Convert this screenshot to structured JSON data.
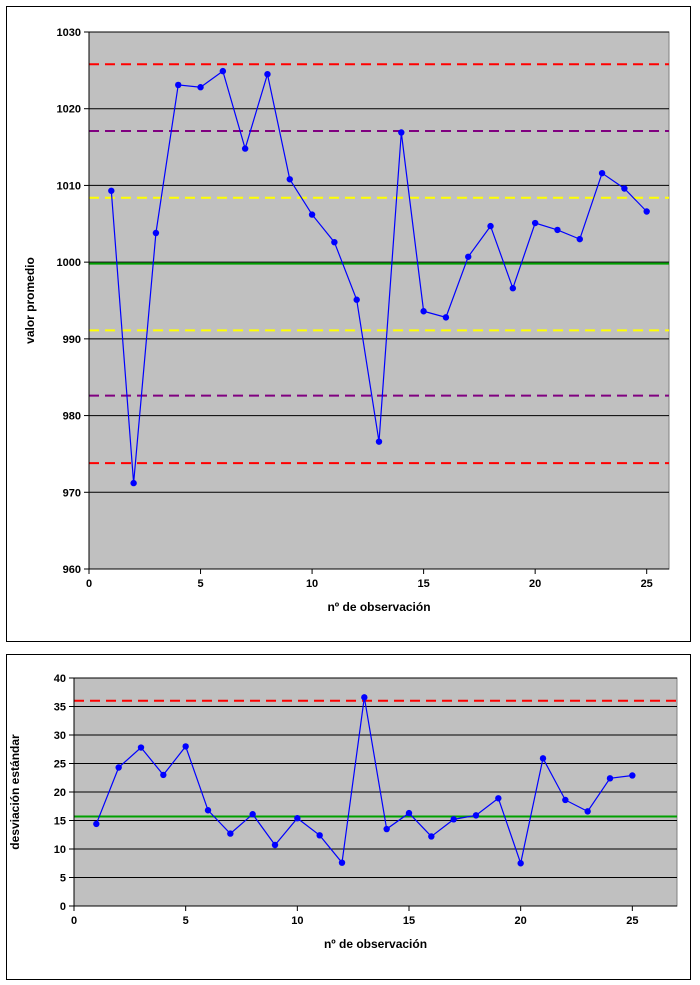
{
  "chart_data": [
    {
      "type": "line",
      "xlabel": "nº de observación",
      "ylabel": "valor promedio",
      "xlim": [
        0,
        26
      ],
      "ylim": [
        960,
        1030
      ],
      "xticks": [
        0,
        5,
        10,
        15,
        20,
        25
      ],
      "yticks": [
        960,
        970,
        980,
        990,
        1000,
        1010,
        1020,
        1030
      ],
      "grid": "horizontal",
      "plot_background": "#c0c0c0",
      "series": [
        {
          "color": "#0000ff",
          "x": [
            1,
            2,
            3,
            4,
            5,
            6,
            7,
            8,
            9,
            10,
            11,
            12,
            13,
            14,
            15,
            16,
            17,
            18,
            19,
            20,
            21,
            22,
            23,
            24,
            25
          ],
          "values": [
            1009.3,
            971.2,
            1003.8,
            1023.1,
            1022.8,
            1024.9,
            1014.8,
            1024.5,
            1010.8,
            1006.2,
            1002.6,
            995.1,
            976.6,
            1016.9,
            993.6,
            992.8,
            1000.7,
            1004.7,
            996.6,
            1005.1,
            1004.2,
            1003.0,
            1011.6,
            1009.6,
            1006.6
          ]
        }
      ],
      "reference_lines": [
        {
          "value": 1025.8,
          "color": "#ff0000",
          "style": "dashed"
        },
        {
          "value": 1017.1,
          "color": "#800080",
          "style": "dashed"
        },
        {
          "value": 1008.4,
          "color": "#ffff00",
          "style": "dashed"
        },
        {
          "value": 999.8,
          "color": "#00a000",
          "style": "solid"
        },
        {
          "value": 991.1,
          "color": "#ffff00",
          "style": "dashed"
        },
        {
          "value": 982.6,
          "color": "#800080",
          "style": "dashed"
        },
        {
          "value": 973.8,
          "color": "#ff0000",
          "style": "dashed"
        }
      ]
    },
    {
      "type": "line",
      "xlabel": "nº de observación",
      "ylabel": "desviación estándar",
      "xlim": [
        0,
        27
      ],
      "ylim": [
        0,
        40
      ],
      "xticks": [
        0,
        5,
        10,
        15,
        20,
        25
      ],
      "yticks": [
        0,
        5,
        10,
        15,
        20,
        25,
        30,
        35,
        40
      ],
      "grid": "horizontal",
      "plot_background": "#c0c0c0",
      "series": [
        {
          "color": "#0000ff",
          "x": [
            1,
            2,
            3,
            4,
            5,
            6,
            7,
            8,
            9,
            10,
            11,
            12,
            13,
            14,
            15,
            16,
            17,
            18,
            19,
            20,
            21,
            22,
            23,
            24,
            25
          ],
          "values": [
            14.4,
            24.3,
            27.8,
            23.0,
            28.0,
            16.8,
            12.7,
            16.1,
            10.7,
            15.4,
            12.4,
            7.6,
            36.6,
            13.5,
            16.3,
            12.2,
            15.2,
            15.9,
            18.9,
            7.5,
            25.9,
            18.6,
            16.6,
            22.4,
            22.9
          ]
        }
      ],
      "reference_lines": [
        {
          "value": 36.0,
          "color": "#ff0000",
          "style": "dashed"
        },
        {
          "value": 15.7,
          "color": "#00a000",
          "style": "solid"
        }
      ]
    }
  ]
}
